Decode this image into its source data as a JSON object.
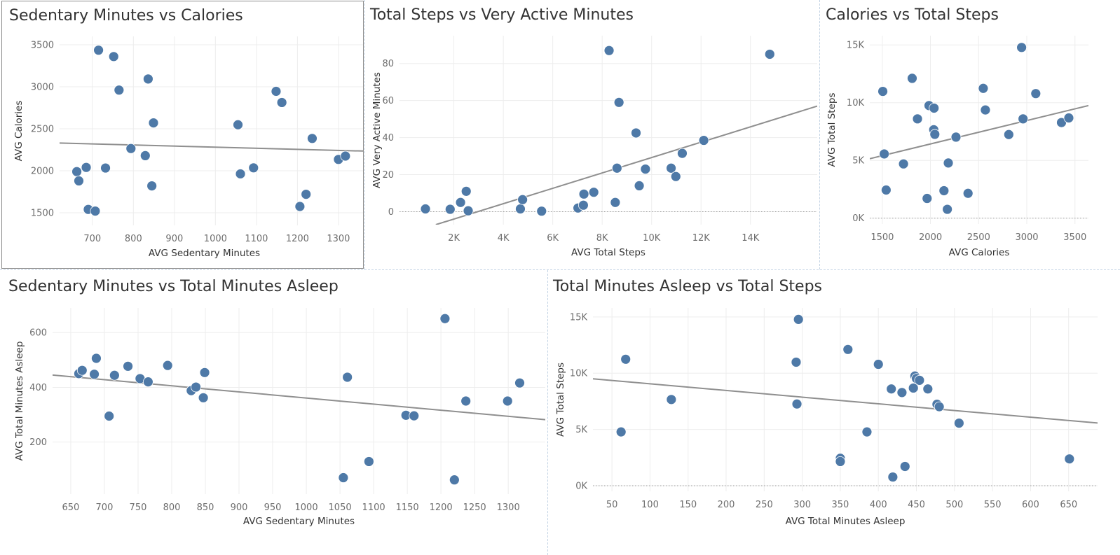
{
  "dashboard": {
    "charts": [
      {
        "id": "sedcal",
        "type": "scatter",
        "title": "Sedentary Minutes vs Calories",
        "xlabel": "AVG Sedentary Minutes",
        "ylabel": "AVG Calories",
        "xlim": [
          620,
          1360
        ],
        "ylim": [
          1350,
          3600
        ],
        "xticks": [
          700,
          800,
          900,
          1000,
          1100,
          1200,
          1300
        ],
        "xtick_labels": [
          "700",
          "800",
          "900",
          "1000",
          "1100",
          "1200",
          "1300"
        ],
        "yticks": [
          1500,
          2000,
          2500,
          3000,
          3500
        ],
        "ytick_labels": [
          "1500",
          "2000",
          "2500",
          "3000",
          "3500"
        ],
        "zero_line": false,
        "trend": [
          [
            620,
            2330
          ],
          [
            1360,
            2235
          ]
        ],
        "points": [
          [
            715,
            3436
          ],
          [
            752,
            3360
          ],
          [
            765,
            2961
          ],
          [
            836,
            3093
          ],
          [
            849,
            2570
          ],
          [
            794,
            2265
          ],
          [
            829,
            2180
          ],
          [
            845,
            1820
          ],
          [
            732,
            2033
          ],
          [
            685,
            2040
          ],
          [
            662,
            1990
          ],
          [
            667,
            1880
          ],
          [
            690,
            1540
          ],
          [
            707,
            1520
          ],
          [
            1055,
            2548
          ],
          [
            1061,
            1963
          ],
          [
            1093,
            2035
          ],
          [
            1148,
            2946
          ],
          [
            1162,
            2813
          ],
          [
            1236,
            2385
          ],
          [
            1206,
            1575
          ],
          [
            1221,
            1720
          ],
          [
            1300,
            2135
          ],
          [
            1317,
            2175
          ]
        ]
      },
      {
        "id": "stepsactive",
        "type": "scatter",
        "title": "Total Steps vs Very Active Minutes",
        "xlabel": "AVG Total Steps",
        "ylabel": "AVG Very Active Minutes",
        "xlim": [
          -200,
          16700
        ],
        "ylim": [
          -7,
          95
        ],
        "xticks": [
          2000,
          4000,
          6000,
          8000,
          10000,
          12000,
          14000
        ],
        "xtick_labels": [
          "2K",
          "4K",
          "6K",
          "8K",
          "10K",
          "12K",
          "14K"
        ],
        "yticks": [
          0,
          20,
          40,
          60,
          80
        ],
        "ytick_labels": [
          "0",
          "20",
          "40",
          "60",
          "80"
        ],
        "zero_line": true,
        "trend": [
          [
            1270,
            -7
          ],
          [
            16700,
            57
          ]
        ],
        "points": [
          [
            850,
            1.5
          ],
          [
            1850,
            1.3
          ],
          [
            2270,
            5
          ],
          [
            2500,
            11
          ],
          [
            2580,
            0.5
          ],
          [
            4690,
            1.5
          ],
          [
            4780,
            6.5
          ],
          [
            5550,
            0.3
          ],
          [
            7020,
            2
          ],
          [
            7240,
            3.5
          ],
          [
            7260,
            9.5
          ],
          [
            7660,
            10.5
          ],
          [
            8280,
            87
          ],
          [
            8530,
            5
          ],
          [
            8600,
            23.5
          ],
          [
            8680,
            59
          ],
          [
            9370,
            42.5
          ],
          [
            9500,
            14
          ],
          [
            9750,
            23
          ],
          [
            10790,
            23.5
          ],
          [
            10980,
            19
          ],
          [
            11240,
            31.5
          ],
          [
            12110,
            38.5
          ],
          [
            14780,
            85
          ]
        ]
      },
      {
        "id": "calsteps",
        "type": "scatter",
        "title": "Calories vs Total Steps",
        "xlabel": "AVG Calories",
        "ylabel": "AVG Total Steps",
        "xlim": [
          1370,
          3640
        ],
        "ylim": [
          -500,
          15800
        ],
        "xticks": [
          1500,
          2000,
          2500,
          3000,
          3500
        ],
        "xtick_labels": [
          "1500",
          "2000",
          "2500",
          "3000",
          "3500"
        ],
        "yticks": [
          0,
          5000,
          10000,
          15000
        ],
        "ytick_labels": [
          "0K",
          "5K",
          "10K",
          "15K"
        ],
        "zero_line": true,
        "trend": [
          [
            1370,
            5150
          ],
          [
            3640,
            9750
          ]
        ],
        "points": [
          [
            1505,
            10980
          ],
          [
            1520,
            5560
          ],
          [
            1540,
            2440
          ],
          [
            1720,
            4700
          ],
          [
            1810,
            12110
          ],
          [
            1865,
            8600
          ],
          [
            1965,
            1710
          ],
          [
            1985,
            9750
          ],
          [
            2034,
            7660
          ],
          [
            2037,
            9530
          ],
          [
            2045,
            7260
          ],
          [
            2140,
            2380
          ],
          [
            2175,
            770
          ],
          [
            2185,
            4780
          ],
          [
            2265,
            7020
          ],
          [
            2390,
            2150
          ],
          [
            2548,
            11240
          ],
          [
            2570,
            9370
          ],
          [
            2813,
            7240
          ],
          [
            2946,
            14780
          ],
          [
            2961,
            8600
          ],
          [
            3093,
            10790
          ],
          [
            3360,
            8280
          ],
          [
            3436,
            8680
          ]
        ]
      },
      {
        "id": "sedsleep",
        "type": "scatter",
        "title": "Sedentary Minutes vs Total Minutes Asleep",
        "xlabel": "AVG Sedentary Minutes",
        "ylabel": "AVG Total Minutes Asleep",
        "xlim": [
          623,
          1355
        ],
        "ylim": [
          10,
          690
        ],
        "xticks": [
          650,
          700,
          750,
          800,
          850,
          900,
          950,
          1000,
          1050,
          1100,
          1150,
          1200,
          1250,
          1300
        ],
        "xtick_labels": [
          "650",
          "700",
          "750",
          "800",
          "850",
          "900",
          "950",
          "1000",
          "1050",
          "1100",
          "1150",
          "1200",
          "1250",
          "1300"
        ],
        "yticks": [
          200,
          400,
          600
        ],
        "ytick_labels": [
          "200",
          "400",
          "600"
        ],
        "zero_line": false,
        "trend": [
          [
            623,
            445
          ],
          [
            1355,
            282
          ]
        ],
        "points": [
          [
            662,
            450
          ],
          [
            667,
            462
          ],
          [
            685,
            448
          ],
          [
            688,
            506
          ],
          [
            707,
            295
          ],
          [
            715,
            444
          ],
          [
            735,
            477
          ],
          [
            753,
            432
          ],
          [
            765,
            420
          ],
          [
            794,
            480
          ],
          [
            829,
            388
          ],
          [
            836,
            401
          ],
          [
            847,
            362
          ],
          [
            849,
            454
          ],
          [
            1055,
            70
          ],
          [
            1061,
            437
          ],
          [
            1093,
            129
          ],
          [
            1148,
            298
          ],
          [
            1160,
            296
          ],
          [
            1206,
            651
          ],
          [
            1220,
            62
          ],
          [
            1237,
            350
          ],
          [
            1299,
            350
          ],
          [
            1317,
            416
          ]
        ]
      },
      {
        "id": "sleepsteps",
        "type": "scatter",
        "title": "Total Minutes Asleep vs Total Steps",
        "xlabel": "AVG Total Minutes Asleep",
        "ylabel": "AVG Total Steps",
        "xlim": [
          25,
          688
        ],
        "ylim": [
          -500,
          15800
        ],
        "xticks": [
          50,
          100,
          150,
          200,
          250,
          300,
          350,
          400,
          450,
          500,
          550,
          600,
          650
        ],
        "xtick_labels": [
          "50",
          "100",
          "150",
          "200",
          "250",
          "300",
          "350",
          "400",
          "450",
          "500",
          "550",
          "600",
          "650"
        ],
        "yticks": [
          0,
          5000,
          10000,
          15000
        ],
        "ytick_labels": [
          "0K",
          "5K",
          "10K",
          "15K"
        ],
        "zero_line": true,
        "trend": [
          [
            25,
            9500
          ],
          [
            688,
            5570
          ]
        ],
        "points": [
          [
            62,
            4780
          ],
          [
            68,
            11240
          ],
          [
            128,
            7660
          ],
          [
            292,
            10980
          ],
          [
            293,
            7260
          ],
          [
            295,
            14780
          ],
          [
            350,
            2440
          ],
          [
            350,
            2150
          ],
          [
            360,
            12110
          ],
          [
            385,
            4780
          ],
          [
            400,
            10790
          ],
          [
            417,
            8600
          ],
          [
            419,
            770
          ],
          [
            431,
            8280
          ],
          [
            435,
            1710
          ],
          [
            446,
            8680
          ],
          [
            448,
            9750
          ],
          [
            450,
            9530
          ],
          [
            454,
            9370
          ],
          [
            465,
            8600
          ],
          [
            477,
            7240
          ],
          [
            480,
            7020
          ],
          [
            506,
            5560
          ],
          [
            651,
            2380
          ]
        ]
      }
    ]
  }
}
